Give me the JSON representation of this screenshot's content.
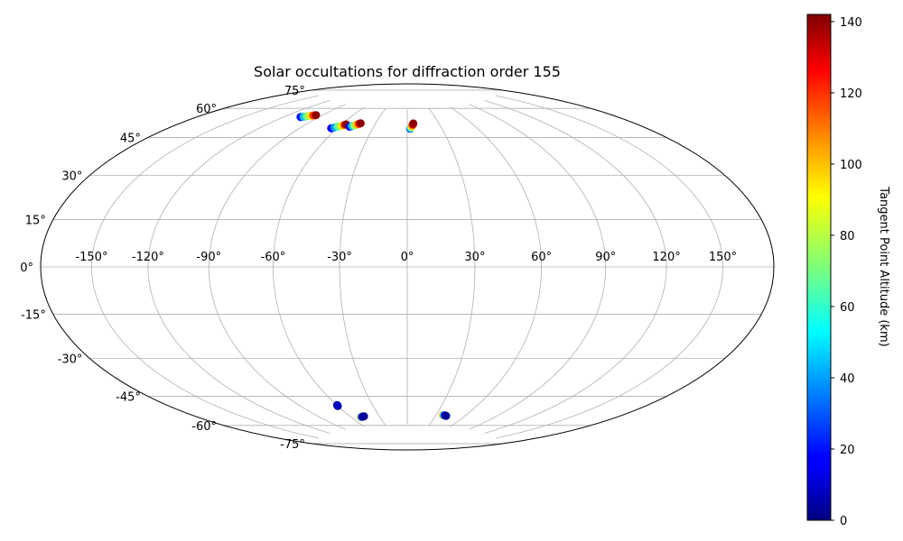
{
  "chart_data": {
    "type": "scatter",
    "projection": "hammer",
    "title": "Solar occultations for diffraction order 155",
    "grid": true,
    "lon_ticks": [
      "-150°",
      "-120°",
      "-90°",
      "-60°",
      "-30°",
      "0°",
      "30°",
      "60°",
      "90°",
      "120°",
      "150°"
    ],
    "lat_ticks": [
      "75°",
      "60°",
      "45°",
      "30°",
      "15°",
      "0°",
      "-15°",
      "-30°",
      "-45°",
      "-60°",
      "-75°"
    ],
    "colorbar": {
      "label": "Tangent Point Altitude (km)",
      "colormap": "jet",
      "range": [
        0,
        142
      ],
      "ticks": [
        "0",
        "20",
        "40",
        "60",
        "80",
        "100",
        "120",
        "140"
      ]
    },
    "series": [
      {
        "lon": [
          -106,
          -104,
          -102,
          -100,
          -98,
          -96
        ],
        "lat": [
          66,
          66.4,
          66.8,
          67.3,
          67.7,
          68.0
        ],
        "alt": [
          20,
          45,
          70,
          95,
          120,
          140
        ]
      },
      {
        "lon": [
          -65,
          -63,
          -61,
          -59,
          -57,
          -56
        ],
        "lat": [
          63,
          63.5,
          64,
          64.6,
          65.2,
          65.5
        ],
        "alt": [
          15,
          40,
          65,
          95,
          120,
          140
        ]
      },
      {
        "lon": [
          -51,
          -49.5,
          -48,
          -46.5,
          -45,
          -44
        ],
        "lat": [
          64.5,
          64.9,
          65.3,
          65.8,
          66.3,
          66.6
        ],
        "alt": [
          15,
          45,
          75,
          100,
          125,
          140
        ]
      },
      {
        "lon": [
          2.5,
          3.2,
          3.9,
          4.6,
          5.3,
          5.8
        ],
        "lat": [
          64.5,
          65,
          65.6,
          66.2,
          66.8,
          67.3
        ],
        "alt": [
          30,
          60,
          90,
          110,
          130,
          140
        ]
      },
      {
        "lon": [
          -60,
          -60,
          -59.8,
          -59.6
        ],
        "lat": [
          -63.5,
          -63.3,
          -63.2,
          -63.0
        ],
        "alt": [
          2,
          4,
          6,
          8
        ]
      },
      {
        "lon": [
          -50,
          -49,
          -48,
          -47,
          -46
        ],
        "lat": [
          -70,
          -69.9,
          -69.8,
          -69.7,
          -69.7
        ],
        "alt": [
          100,
          40,
          10,
          5,
          3
        ]
      },
      {
        "lon": [
          37,
          38,
          39,
          40,
          41
        ],
        "lat": [
          -69.3,
          -69.3,
          -69.4,
          -69.5,
          -69.6
        ],
        "alt": [
          100,
          60,
          25,
          10,
          3
        ]
      }
    ]
  }
}
